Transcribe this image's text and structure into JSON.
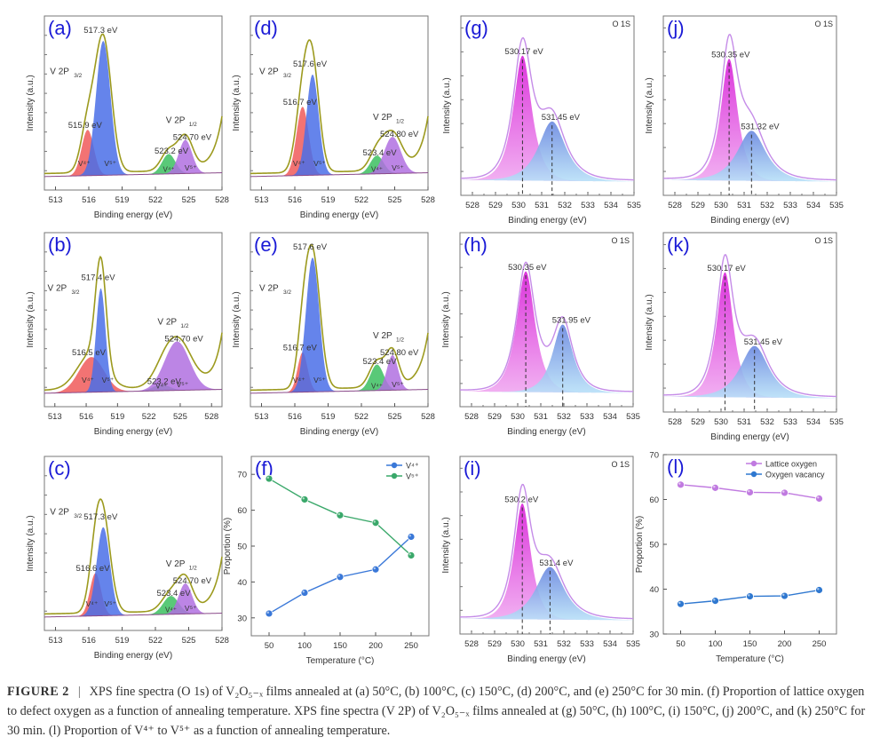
{
  "figure": {
    "caption_label": "FIGURE 2",
    "caption_separator": "|",
    "caption_text": "XPS fine spectra (O 1s) of V₂O₅₋ₓ films annealed at (a) 50°C, (b) 100°C, (c) 150°C, (d) 200°C, and (e) 250°C for 30 min. (f) Proportion of lattice oxygen to defect oxygen as a function of annealing temperature. XPS fine spectra (V 2P) of V₂O₅₋ₓ films annealed at (g) 50°C, (h) 100°C, (i) 150°C, (j) 200°C, and (k) 250°C for 30 min. (l) Proportion of V⁴⁺ to V⁵⁺ as a function of annealing temperature."
  },
  "colors": {
    "panel_letter": "#1a1ad6",
    "envelope_v": "#9c9a1e",
    "v4_2p32": "#f05a5a",
    "v5_2p32": "#4a6ee8",
    "v4_2p12": "#3cc060",
    "v5_2p12": "#b070e0",
    "envelope_o": "#c58ce8",
    "lattice_fill": "#e040e0",
    "vacancy_fill": "#6a9ae8",
    "series_v4": "#3a78d8",
    "series_v5": "#3aa86a",
    "series_lattice": "#c07ae0",
    "series_vacancy": "#2f78d0"
  },
  "chart_data": [
    {
      "id": "a",
      "type": "area",
      "panel_label": "(a)",
      "xlabel": "Binding energy (eV)",
      "ylabel": "Intensity (a.u.)",
      "xlim": [
        512,
        528
      ],
      "xticks": [
        513,
        516,
        519,
        522,
        525,
        528
      ],
      "peaks": [
        {
          "name": "V4+ 2p3/2",
          "label": "V⁴⁺",
          "center": 515.9,
          "height": 0.3,
          "width": 0.55,
          "color": "#f05a5a",
          "annotation": "515.9 eV"
        },
        {
          "name": "V5+ 2p3/2",
          "label": "V⁵⁺",
          "center": 517.3,
          "height": 0.88,
          "width": 0.65,
          "color": "#4a6ee8",
          "annotation": "517.3 eV"
        },
        {
          "name": "V4+ 2p1/2",
          "label": "V⁴⁺",
          "center": 523.2,
          "height": 0.13,
          "width": 0.6,
          "color": "#3cc060",
          "annotation": "523.2 eV"
        },
        {
          "name": "V5+ 2p1/2",
          "label": "V⁵⁺",
          "center": 524.7,
          "height": 0.22,
          "width": 0.6,
          "color": "#b070e0",
          "annotation": "524.70 eV"
        }
      ],
      "labels": {
        "v2p32": "V 2P 3/2",
        "v2p12": "V 2P1/2"
      }
    },
    {
      "id": "b",
      "type": "area",
      "panel_label": "(b)",
      "xlabel": "Binding energy (eV)",
      "ylabel": "Intensity (a.u.)",
      "xlim": [
        512,
        529
      ],
      "xticks": [
        513,
        516,
        519,
        522,
        525,
        528
      ],
      "peaks": [
        {
          "name": "V4+ 2p3/2",
          "label": "V⁴⁺",
          "center": 516.5,
          "height": 0.23,
          "width": 1.2,
          "color": "#f05a5a",
          "annotation": "516.5 eV"
        },
        {
          "name": "V5+ 2p3/2",
          "label": "V⁵⁺",
          "center": 517.4,
          "height": 0.68,
          "width": 0.45,
          "color": "#4a6ee8",
          "annotation": "517.4 eV"
        },
        {
          "name": "V4+ 2p1/2",
          "label": "V⁴⁺",
          "center": 523.2,
          "height": 0.04,
          "width": 0.8,
          "color": "#3cc060",
          "annotation": "523.2 eV"
        },
        {
          "name": "V5+ 2p1/2",
          "label": "V⁵⁺",
          "center": 524.7,
          "height": 0.32,
          "width": 1.2,
          "color": "#b070e0",
          "annotation": "524.70 eV"
        }
      ],
      "labels": {
        "v2p32": "V 2P 3/2",
        "v2p12": "V 2P1/2"
      }
    },
    {
      "id": "c",
      "type": "area",
      "panel_label": "(c)",
      "xlabel": "Binding energy (eV)",
      "ylabel": "Intensity (a.u.)",
      "xlim": [
        512,
        528
      ],
      "xticks": [
        513,
        516,
        519,
        522,
        525,
        528
      ],
      "peaks": [
        {
          "name": "V4+ 2p3/2",
          "label": "V⁴⁺",
          "center": 516.6,
          "height": 0.28,
          "width": 0.5,
          "color": "#f05a5a",
          "annotation": "516.6 eV"
        },
        {
          "name": "V5+ 2p3/2",
          "label": "V⁵⁺",
          "center": 517.3,
          "height": 0.58,
          "width": 0.6,
          "color": "#4a6ee8",
          "annotation": "517.3 eV"
        },
        {
          "name": "V4+ 2p1/2",
          "label": "V⁴⁺",
          "center": 523.4,
          "height": 0.12,
          "width": 0.7,
          "color": "#3cc060",
          "annotation": "523.4 eV"
        },
        {
          "name": "V5+ 2p1/2",
          "label": "V⁵⁺",
          "center": 524.7,
          "height": 0.2,
          "width": 0.6,
          "color": "#b070e0",
          "annotation": "524.70 eV"
        }
      ],
      "labels": {
        "v2p32": "V 2P 3/2",
        "v2p12": "V 2P1/2"
      }
    },
    {
      "id": "d",
      "type": "area",
      "panel_label": "(d)",
      "xlabel": "Binding energy (eV)",
      "ylabel": "Intensity (a.u.)",
      "xlim": [
        512,
        528
      ],
      "xticks": [
        513,
        516,
        519,
        522,
        525,
        528
      ],
      "peaks": [
        {
          "name": "V4+ 2p3/2",
          "label": "V⁴⁺",
          "center": 516.7,
          "height": 0.45,
          "width": 0.55,
          "color": "#f05a5a",
          "annotation": "516.7 eV"
        },
        {
          "name": "V5+ 2p3/2",
          "label": "V⁵⁺",
          "center": 517.6,
          "height": 0.66,
          "width": 0.55,
          "color": "#4a6ee8",
          "annotation": "517.6 eV"
        },
        {
          "name": "V4+ 2p1/2",
          "label": "V⁴⁺",
          "center": 523.4,
          "height": 0.12,
          "width": 0.6,
          "color": "#3cc060",
          "annotation": "523.4 eV"
        },
        {
          "name": "V5+ 2p1/2",
          "label": "V⁵⁺",
          "center": 524.8,
          "height": 0.24,
          "width": 0.75,
          "color": "#b070e0",
          "annotation": "524.80 eV"
        }
      ],
      "labels": {
        "v2p32": "V 2P 3/2",
        "v2p12": "V 2P1/2"
      }
    },
    {
      "id": "e",
      "type": "area",
      "panel_label": "(e)",
      "xlabel": "Binding energy (eV)",
      "ylabel": "Intensity (a.u.)",
      "xlim": [
        512,
        528
      ],
      "xticks": [
        513,
        516,
        519,
        522,
        525,
        528
      ],
      "peaks": [
        {
          "name": "V4+ 2p3/2",
          "label": "V⁴⁺",
          "center": 516.7,
          "height": 0.26,
          "width": 0.45,
          "color": "#f05a5a",
          "annotation": "516.7 eV"
        },
        {
          "name": "V5+ 2p3/2",
          "label": "V⁵⁺",
          "center": 517.6,
          "height": 0.88,
          "width": 0.6,
          "color": "#4a6ee8",
          "annotation": "517.6 eV"
        },
        {
          "name": "V4+ 2p1/2",
          "label": "V⁴⁺",
          "center": 523.4,
          "height": 0.17,
          "width": 0.6,
          "color": "#3cc060",
          "annotation": "523.4 eV"
        },
        {
          "name": "V5+ 2p1/2",
          "label": "V⁵⁺",
          "center": 524.8,
          "height": 0.23,
          "width": 0.5,
          "color": "#b070e0",
          "annotation": "524.80 eV"
        }
      ],
      "labels": {
        "v2p32": "V 2P 3/2",
        "v2p12": "V 2P1/2"
      }
    },
    {
      "id": "f",
      "type": "line",
      "panel_label": "(f)",
      "xlabel": "Temperature (°C)",
      "ylabel": "Proportion (%)",
      "xlim": [
        25,
        275
      ],
      "ylim": [
        25,
        75
      ],
      "xticks": [
        50,
        100,
        150,
        200,
        250
      ],
      "yticks": [
        30,
        40,
        50,
        60,
        70
      ],
      "x": [
        50,
        100,
        150,
        200,
        250
      ],
      "legend_position": "top-right",
      "series": [
        {
          "name": "V⁴⁺",
          "color": "#3a78d8",
          "values": [
            31.2,
            37.0,
            41.4,
            43.5,
            52.6
          ]
        },
        {
          "name": "V⁵⁺",
          "color": "#3aa86a",
          "values": [
            68.8,
            63.0,
            58.6,
            56.5,
            47.4
          ]
        }
      ]
    },
    {
      "id": "g",
      "type": "area",
      "panel_label": "(g)",
      "corner_label": "O 1S",
      "xlabel": "Binding energy (eV)",
      "ylabel": "Intensity (a.u.)",
      "xlim": [
        527.5,
        535
      ],
      "xticks": [
        528,
        529,
        530,
        531,
        532,
        533,
        534,
        535
      ],
      "peaks": [
        {
          "name": "Lattice oxygen",
          "center": 530.17,
          "height": 0.8,
          "width": 0.55,
          "annotation": "530.17 eV"
        },
        {
          "name": "Oxygen vacancy",
          "center": 531.45,
          "height": 0.38,
          "width": 0.8,
          "annotation": "531.45 eV"
        }
      ]
    },
    {
      "id": "h",
      "type": "area",
      "panel_label": "(h)",
      "corner_label": "O 1S",
      "xlabel": "Binding energy (eV)",
      "ylabel": "Intensity (a.u.)",
      "xlim": [
        527.5,
        535
      ],
      "xticks": [
        528,
        529,
        530,
        531,
        532,
        533,
        534,
        535
      ],
      "peaks": [
        {
          "name": "Lattice oxygen",
          "center": 530.35,
          "height": 0.8,
          "width": 0.55,
          "annotation": "530.35 eV"
        },
        {
          "name": "Oxygen vacancy",
          "center": 531.95,
          "height": 0.45,
          "width": 0.6,
          "annotation": "531.95 eV"
        }
      ]
    },
    {
      "id": "i",
      "type": "area",
      "panel_label": "(i)",
      "corner_label": "O 1S",
      "xlabel": "Binding energy (eV)",
      "ylabel": "Intensity (a.u.)",
      "xlim": [
        527.5,
        535
      ],
      "xticks": [
        528,
        529,
        530,
        531,
        532,
        533,
        534,
        535
      ],
      "peaks": [
        {
          "name": "Lattice oxygen",
          "center": 530.2,
          "height": 0.75,
          "width": 0.5,
          "annotation": "530.2 eV"
        },
        {
          "name": "Oxygen vacancy",
          "center": 531.4,
          "height": 0.34,
          "width": 0.85,
          "annotation": "531.4 eV"
        }
      ]
    },
    {
      "id": "j",
      "type": "area",
      "panel_label": "(j)",
      "corner_label": "O 1S",
      "xlabel": "Binding energy (eV)",
      "ylabel": "Intensity (a.u.)",
      "xlim": [
        527.5,
        535
      ],
      "xticks": [
        528,
        529,
        530,
        531,
        532,
        533,
        534,
        535
      ],
      "peaks": [
        {
          "name": "Lattice oxygen",
          "center": 530.35,
          "height": 0.78,
          "width": 0.5,
          "annotation": "530.35 eV"
        },
        {
          "name": "Oxygen vacancy",
          "center": 531.32,
          "height": 0.32,
          "width": 0.85,
          "annotation": "531.32 eV"
        }
      ]
    },
    {
      "id": "k",
      "type": "area",
      "panel_label": "(k)",
      "corner_label": "O 1S",
      "xlabel": "Binding energy (eV)",
      "ylabel": "Intensity (a.u.)",
      "xlim": [
        527.5,
        535
      ],
      "xticks": [
        528,
        529,
        530,
        531,
        532,
        533,
        534,
        535
      ],
      "peaks": [
        {
          "name": "Lattice oxygen",
          "center": 530.17,
          "height": 0.8,
          "width": 0.5,
          "annotation": "530.17 eV"
        },
        {
          "name": "Oxygen vacancy",
          "center": 531.45,
          "height": 0.33,
          "width": 0.85,
          "annotation": "531.45 eV"
        }
      ]
    },
    {
      "id": "l",
      "type": "line",
      "panel_label": "(l)",
      "xlabel": "Temperature (°C)",
      "ylabel": "Proportion (%)",
      "xlim": [
        25,
        275
      ],
      "ylim": [
        30,
        70
      ],
      "xticks": [
        50,
        100,
        150,
        200,
        250
      ],
      "yticks": [
        30,
        40,
        50,
        60,
        70
      ],
      "x": [
        50,
        100,
        150,
        200,
        250
      ],
      "legend_position": "top-right",
      "series": [
        {
          "name": "Lattice oxygen",
          "color": "#c07ae0",
          "values": [
            63.3,
            62.6,
            61.6,
            61.5,
            60.2
          ]
        },
        {
          "name": "Oxygen vacancy",
          "color": "#2f78d0",
          "values": [
            36.7,
            37.4,
            38.4,
            38.5,
            39.8
          ]
        }
      ]
    }
  ]
}
